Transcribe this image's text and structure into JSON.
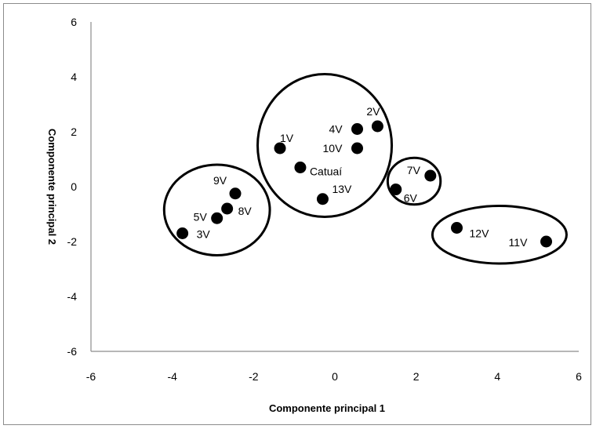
{
  "chart_data": {
    "type": "scatter",
    "title": "",
    "xlabel": "Componente principal 1",
    "ylabel": "Componente principal 2",
    "xlim": [
      -6,
      6
    ],
    "ylim": [
      -6,
      6
    ],
    "xticks": [
      -6,
      -4,
      -2,
      0,
      2,
      4,
      6
    ],
    "yticks": [
      -6,
      -4,
      -2,
      0,
      2,
      4,
      6
    ],
    "grid": false,
    "legend": "none",
    "marker_color": "#000000",
    "points": [
      {
        "label": "1V",
        "x": -1.35,
        "y": 1.4
      },
      {
        "label": "2V",
        "x": 1.05,
        "y": 2.2
      },
      {
        "label": "3V",
        "x": -3.75,
        "y": -1.7
      },
      {
        "label": "4V",
        "x": 0.55,
        "y": 2.1
      },
      {
        "label": "5V",
        "x": -2.9,
        "y": -1.15
      },
      {
        "label": "6V",
        "x": 1.5,
        "y": -0.1
      },
      {
        "label": "7V",
        "x": 2.35,
        "y": 0.4
      },
      {
        "label": "8V",
        "x": -2.65,
        "y": -0.8
      },
      {
        "label": "9V",
        "x": -2.45,
        "y": -0.25
      },
      {
        "label": "10V",
        "x": 0.55,
        "y": 1.4
      },
      {
        "label": "11V",
        "x": 5.2,
        "y": -2.0
      },
      {
        "label": "12V",
        "x": 3.0,
        "y": -1.5
      },
      {
        "label": "13V",
        "x": -0.3,
        "y": -0.45
      },
      {
        "label": "Catuaí",
        "x": -0.85,
        "y": 0.7
      }
    ],
    "groups": [
      {
        "members": [
          "3V",
          "5V",
          "8V",
          "9V"
        ],
        "center": [
          -2.9,
          -0.85
        ],
        "radius": [
          1.3,
          1.65
        ]
      },
      {
        "members": [
          "1V",
          "2V",
          "4V",
          "10V",
          "Catuaí",
          "13V"
        ],
        "center": [
          -0.25,
          1.5
        ],
        "radius": [
          1.65,
          2.6
        ]
      },
      {
        "members": [
          "6V",
          "7V"
        ],
        "center": [
          1.95,
          0.2
        ],
        "radius": [
          0.65,
          0.85
        ]
      },
      {
        "members": [
          "12V",
          "11V"
        ],
        "center": [
          4.05,
          -1.75
        ],
        "radius": [
          1.65,
          1.05
        ]
      }
    ]
  }
}
